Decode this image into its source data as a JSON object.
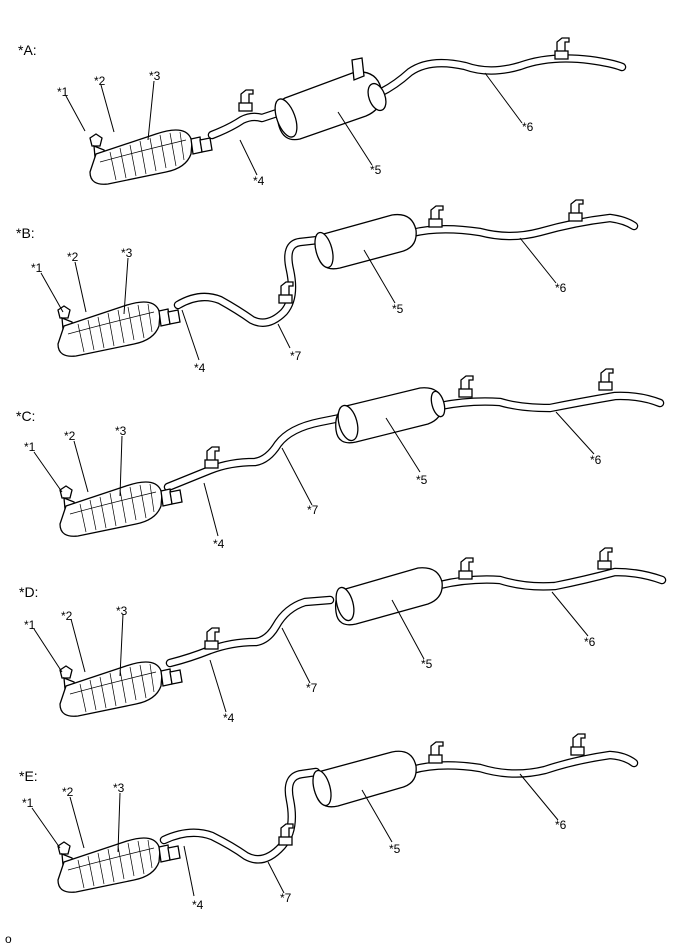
{
  "variants": [
    {
      "id": "A",
      "tag": "*A:",
      "labels": {
        "p1": "*1",
        "p2": "*2",
        "p3": "*3",
        "p4": "*4",
        "p5": "*5",
        "p6": "*6"
      }
    },
    {
      "id": "B",
      "tag": "*B:",
      "labels": {
        "p1": "*1",
        "p2": "*2",
        "p3": "*3",
        "p4": "*4",
        "p5": "*5",
        "p6": "*6",
        "p7": "*7"
      }
    },
    {
      "id": "C",
      "tag": "*C:",
      "labels": {
        "p1": "*1",
        "p2": "*2",
        "p3": "*3",
        "p4": "*4",
        "p5": "*5",
        "p6": "*6",
        "p7": "*7"
      }
    },
    {
      "id": "D",
      "tag": "*D:",
      "labels": {
        "p1": "*1",
        "p2": "*2",
        "p3": "*3",
        "p4": "*4",
        "p5": "*5",
        "p6": "*6",
        "p7": "*7"
      }
    },
    {
      "id": "E",
      "tag": "*E:",
      "labels": {
        "p1": "*1",
        "p2": "*2",
        "p3": "*3",
        "p4": "*4",
        "p5": "*5",
        "p6": "*6",
        "p7": "*7"
      }
    }
  ],
  "footer": "o"
}
